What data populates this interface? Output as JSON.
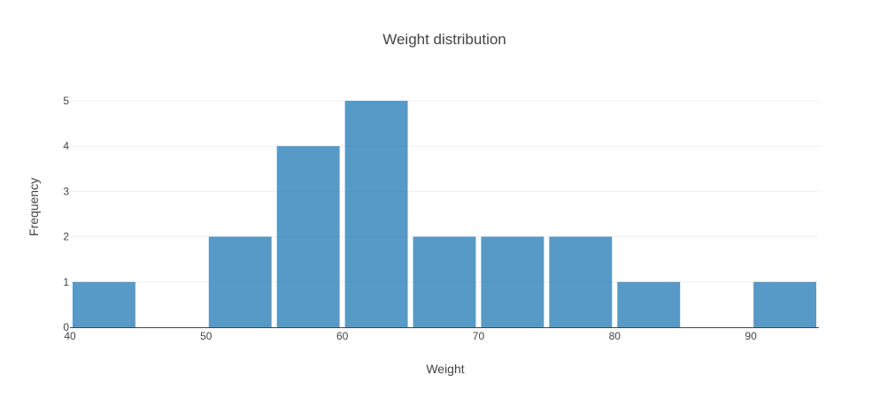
{
  "chart_data": {
    "type": "bar",
    "histogram": true,
    "title": "Weight distribution",
    "xlabel": "Weight",
    "ylabel": "Frequency",
    "bin_width": 5,
    "bins": [
      {
        "start": 40,
        "end": 45,
        "count": 1
      },
      {
        "start": 45,
        "end": 50,
        "count": 0
      },
      {
        "start": 50,
        "end": 55,
        "count": 2
      },
      {
        "start": 55,
        "end": 60,
        "count": 4
      },
      {
        "start": 60,
        "end": 65,
        "count": 5
      },
      {
        "start": 65,
        "end": 70,
        "count": 2
      },
      {
        "start": 70,
        "end": 75,
        "count": 2
      },
      {
        "start": 75,
        "end": 80,
        "count": 2
      },
      {
        "start": 80,
        "end": 85,
        "count": 1
      },
      {
        "start": 85,
        "end": 90,
        "count": 0
      },
      {
        "start": 90,
        "end": 95,
        "count": 1
      }
    ],
    "xlim": [
      40,
      95
    ],
    "ylim": [
      0,
      5
    ],
    "x_ticks": [
      "40",
      "50",
      "60",
      "70",
      "80",
      "90"
    ],
    "y_ticks": [
      "0",
      "1",
      "2",
      "3",
      "4",
      "5"
    ],
    "grid": true,
    "bar_color": "#1f77b4",
    "bar_opacity": 0.75
  }
}
